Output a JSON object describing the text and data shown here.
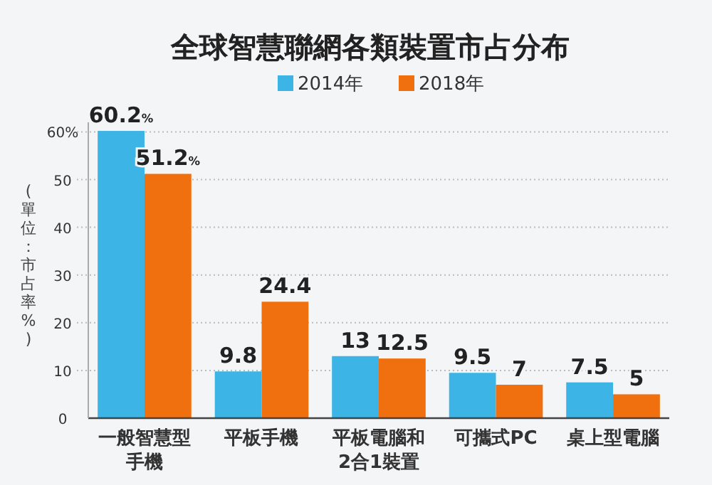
{
  "chart_data": {
    "type": "bar",
    "title": "全球智慧聯網各類裝置市占分布",
    "ylabel": "(單位：市占率%)",
    "categories": [
      "一般智慧型手機",
      "平板手機",
      "平板電腦和2合1裝置",
      "可攜式PC",
      "桌上型電腦"
    ],
    "series": [
      {
        "name": "2014年",
        "color": "#3cb4e6",
        "values": [
          60.2,
          9.8,
          13,
          9.5,
          7.5
        ],
        "value_labels": [
          "60.2%",
          "9.8",
          "13",
          "9.5",
          "7.5"
        ]
      },
      {
        "name": "2018年",
        "color": "#f07010",
        "values": [
          51.2,
          24.4,
          12.5,
          7,
          5
        ],
        "value_labels": [
          "51.2%",
          "24.4",
          "12.5",
          "7",
          "5"
        ]
      }
    ],
    "ylim": [
      0,
      62
    ],
    "yticks": [
      0,
      10,
      20,
      30,
      40,
      50,
      {
        "value": 60,
        "label": "60%"
      }
    ],
    "grid": "y",
    "legend": "top"
  }
}
